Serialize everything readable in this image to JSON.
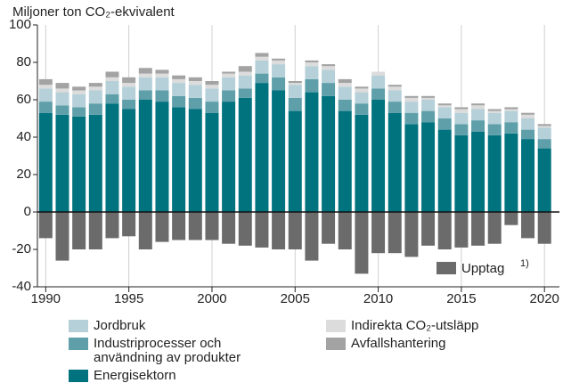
{
  "chart_data": {
    "type": "stacked_bar",
    "title": "Miljoner ton CO₂-ekvivalent",
    "x": [
      1990,
      1991,
      1992,
      1993,
      1994,
      1995,
      1996,
      1997,
      1998,
      1999,
      2000,
      2001,
      2002,
      2003,
      2004,
      2005,
      2006,
      2007,
      2008,
      2009,
      2010,
      2011,
      2012,
      2013,
      2014,
      2015,
      2016,
      2017,
      2018,
      2019,
      2020
    ],
    "xlim": [
      1989.5,
      2020.9
    ],
    "xticks": [
      1990,
      1995,
      2000,
      2005,
      2010,
      2015,
      2020
    ],
    "ylim": [
      -40,
      100
    ],
    "yticks": [
      -40,
      -20,
      0,
      20,
      40,
      60,
      80,
      100
    ],
    "series": [
      {
        "name": "Energisektorn",
        "color": "#00737f",
        "values": [
          53,
          52,
          51,
          52,
          58,
          55,
          60,
          59,
          56,
          55,
          53,
          59,
          61,
          69,
          65,
          54,
          64,
          62,
          54,
          52,
          60,
          53,
          47,
          48,
          44,
          41,
          43,
          41,
          42,
          39,
          34
        ]
      },
      {
        "name": "Industriprocesser och användning av produkter",
        "color": "#5e9fa9",
        "values": [
          6,
          5,
          5,
          6,
          5,
          5,
          5,
          6,
          6,
          6,
          6,
          6,
          5,
          5,
          7,
          7,
          7,
          7,
          6,
          6,
          6,
          6,
          6,
          6,
          6,
          6,
          6,
          6,
          6,
          5,
          5
        ]
      },
      {
        "name": "Jordbruk",
        "color": "#b5d0d8",
        "values": [
          7,
          7,
          7,
          7,
          7,
          7,
          7,
          7,
          7,
          7,
          7,
          7,
          7,
          7,
          7,
          7,
          7,
          7,
          7,
          6,
          7,
          6,
          6,
          6,
          6,
          6,
          6,
          6,
          6,
          6,
          6
        ]
      },
      {
        "name": "Indirekta CO₂-utsläpp",
        "color": "#dcdcdc",
        "values": [
          2,
          2,
          2,
          2,
          2,
          2,
          2,
          2,
          2,
          2,
          2,
          2,
          2,
          2,
          2,
          1,
          2,
          2,
          2,
          2,
          2,
          2,
          2,
          1,
          1,
          2,
          2,
          1,
          1,
          2,
          1
        ]
      },
      {
        "name": "Avfallshantering",
        "color": "#a3a3a3",
        "values": [
          3,
          3,
          2,
          2,
          3,
          3,
          3,
          2,
          2,
          2,
          2,
          1,
          3,
          2,
          1,
          1,
          1,
          1,
          2,
          1,
          0,
          1,
          1,
          1,
          1,
          1,
          1,
          1,
          1,
          1,
          1
        ]
      },
      {
        "name": "Upptag",
        "color": "#6b6b6b",
        "values": [
          -14,
          -26,
          -20,
          -20,
          -14,
          -13,
          -20,
          -16,
          -15,
          -15,
          -15,
          -17,
          -18,
          -19,
          -20,
          -20,
          -26,
          -17,
          -20,
          -33,
          -22,
          -22,
          -24,
          -18,
          -20,
          -19,
          -18,
          -17,
          -7,
          -14,
          -17
        ]
      }
    ],
    "footnote_marker": "1)"
  }
}
